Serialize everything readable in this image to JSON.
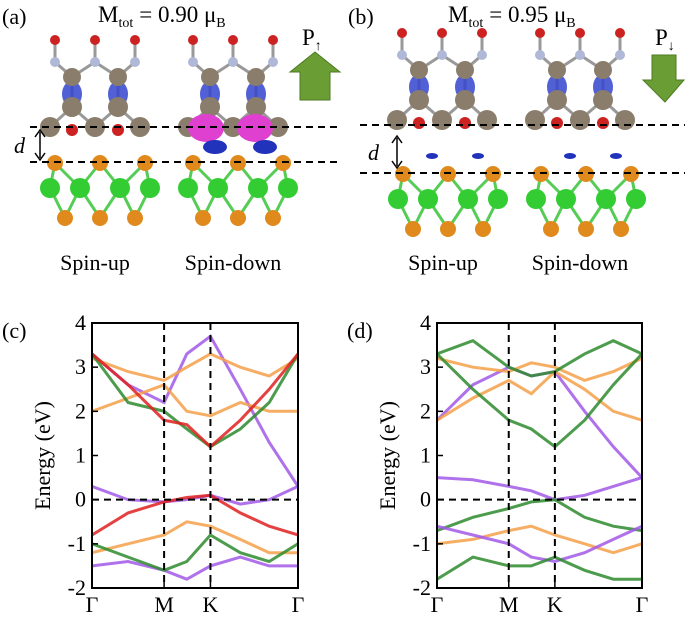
{
  "panels": [
    {
      "label": "(a)",
      "moment": {
        "symbol": "M",
        "sub": "tot",
        "text": "= 0.90 μ",
        "unit_sub": "B"
      },
      "polarization": {
        "symbol": "P",
        "sub": "↑"
      },
      "distance_label": "d",
      "spin_labels": [
        "Spin-up",
        "Spin-down"
      ]
    },
    {
      "label": "(b)",
      "moment": {
        "symbol": "M",
        "sub": "tot",
        "text": "= 0.95 μ",
        "unit_sub": "B"
      },
      "polarization": {
        "symbol": "P",
        "sub": "↓"
      },
      "distance_label": "d",
      "spin_labels": [
        "Spin-up",
        "Spin-down"
      ]
    }
  ],
  "chart_data": [
    {
      "type": "line",
      "label": "(c)",
      "y_label": "Energy (eV)",
      "xlim": [
        0,
        1
      ],
      "ylim": [
        -2,
        4
      ],
      "yticks": [
        -2,
        -1,
        0,
        1,
        2,
        3,
        4
      ],
      "xticks": [
        {
          "value": 0,
          "label": "Γ"
        },
        {
          "value": 0.35,
          "label": "M"
        },
        {
          "value": 0.575,
          "label": "K"
        },
        {
          "value": 1,
          "label": "Γ"
        }
      ],
      "x": [
        0,
        0.175,
        0.35,
        0.46,
        0.575,
        0.72,
        0.86,
        1
      ],
      "series": [
        {
          "color": "#a259e8",
          "values": [
            0.3,
            0.0,
            -0.05,
            0.0,
            0.1,
            -0.1,
            0.0,
            0.3
          ]
        },
        {
          "color": "#a259e8",
          "values": [
            3.3,
            2.6,
            2.2,
            3.3,
            3.7,
            2.5,
            1.3,
            0.3
          ]
        },
        {
          "color": "#f5a04a",
          "values": [
            2.0,
            2.3,
            2.6,
            2.0,
            1.9,
            2.2,
            2.0,
            2.0
          ]
        },
        {
          "color": "#f5a04a",
          "values": [
            3.2,
            2.9,
            2.7,
            3.0,
            3.3,
            3.0,
            2.8,
            3.2
          ]
        },
        {
          "color": "#2e8b2e",
          "values": [
            3.3,
            2.2,
            2.0,
            1.6,
            1.2,
            1.6,
            2.2,
            3.3
          ]
        },
        {
          "color": "#e02020",
          "values": [
            3.3,
            2.6,
            1.8,
            1.7,
            1.2,
            1.8,
            2.5,
            3.3
          ]
        },
        {
          "color": "#e02020",
          "values": [
            -0.8,
            -0.3,
            -0.05,
            0.05,
            0.1,
            -0.3,
            -0.6,
            -0.8
          ]
        },
        {
          "color": "#f5a04a",
          "values": [
            -1.2,
            -1.0,
            -0.8,
            -0.5,
            -0.6,
            -0.9,
            -1.2,
            -1.2
          ]
        },
        {
          "color": "#a259e8",
          "values": [
            -1.5,
            -1.4,
            -1.6,
            -1.8,
            -1.5,
            -1.3,
            -1.5,
            -1.5
          ]
        },
        {
          "color": "#2e8b2e",
          "values": [
            -1.0,
            -1.3,
            -1.6,
            -1.4,
            -0.8,
            -1.2,
            -1.4,
            -1.0
          ]
        }
      ]
    },
    {
      "type": "line",
      "label": "(d)",
      "y_label": "Energy (eV)",
      "xlim": [
        0,
        1
      ],
      "ylim": [
        -2,
        4
      ],
      "yticks": [
        -2,
        -1,
        0,
        1,
        2,
        3,
        4
      ],
      "xticks": [
        {
          "value": 0,
          "label": "Γ"
        },
        {
          "value": 0.35,
          "label": "M"
        },
        {
          "value": 0.575,
          "label": "K"
        },
        {
          "value": 1,
          "label": "Γ"
        }
      ],
      "x": [
        0,
        0.175,
        0.35,
        0.46,
        0.575,
        0.72,
        0.86,
        1
      ],
      "series": [
        {
          "color": "#a259e8",
          "values": [
            0.5,
            0.45,
            0.3,
            0.2,
            0.0,
            0.1,
            0.3,
            0.5
          ]
        },
        {
          "color": "#a259e8",
          "values": [
            1.8,
            2.6,
            3.0,
            2.8,
            2.9,
            2.0,
            1.2,
            0.5
          ]
        },
        {
          "color": "#f5a04a",
          "values": [
            1.8,
            2.3,
            2.7,
            2.4,
            2.9,
            2.5,
            2.0,
            1.8
          ]
        },
        {
          "color": "#f5a04a",
          "values": [
            3.2,
            3.0,
            2.9,
            3.1,
            3.0,
            2.7,
            2.9,
            3.2
          ]
        },
        {
          "color": "#2e8b2e",
          "values": [
            3.3,
            2.5,
            1.8,
            1.6,
            1.2,
            1.8,
            2.6,
            3.3
          ]
        },
        {
          "color": "#2e8b2e",
          "values": [
            3.3,
            3.6,
            3.0,
            2.8,
            2.9,
            3.3,
            3.6,
            3.3
          ]
        },
        {
          "color": "#2e8b2e",
          "values": [
            -0.7,
            -0.4,
            -0.2,
            -0.05,
            0.0,
            -0.4,
            -0.6,
            -0.7
          ]
        },
        {
          "color": "#f5a04a",
          "values": [
            -1.0,
            -0.9,
            -0.7,
            -0.6,
            -0.8,
            -1.0,
            -1.2,
            -1.0
          ]
        },
        {
          "color": "#a259e8",
          "values": [
            -0.6,
            -0.8,
            -1.0,
            -1.3,
            -1.4,
            -1.2,
            -0.9,
            -0.6
          ]
        },
        {
          "color": "#2e8b2e",
          "values": [
            -1.8,
            -1.3,
            -1.5,
            -1.5,
            -1.3,
            -1.6,
            -1.8,
            -1.8
          ]
        }
      ]
    }
  ]
}
